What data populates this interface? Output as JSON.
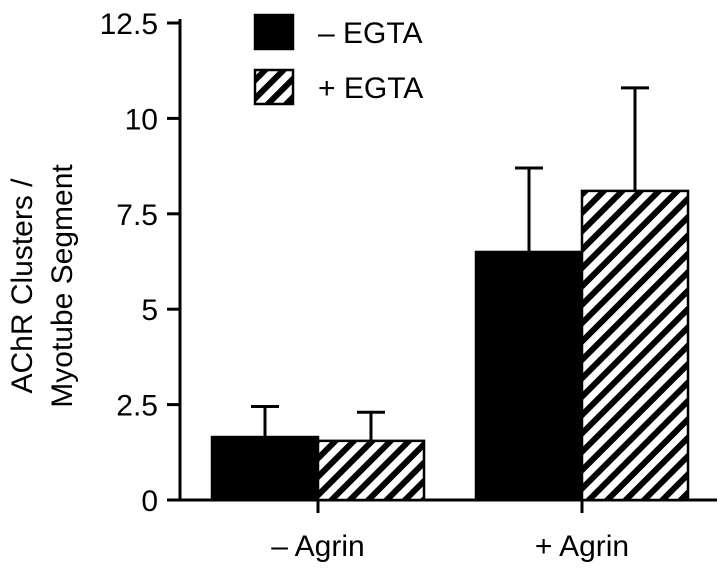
{
  "chart_data": {
    "type": "bar",
    "title": "",
    "xlabel": "",
    "ylabel_lines": [
      "AChR Clusters /",
      "Myotube Segment"
    ],
    "categories": [
      "– Agrin",
      "+ Agrin"
    ],
    "series": [
      {
        "name": "– EGTA",
        "values": [
          1.65,
          6.5
        ],
        "errors": [
          0.8,
          2.2
        ],
        "fill": "solid",
        "color": "#000000"
      },
      {
        "name": "+ EGTA",
        "values": [
          1.55,
          8.1
        ],
        "errors": [
          0.75,
          2.7
        ],
        "fill": "hatched",
        "color": "#000000"
      }
    ],
    "ylim": [
      0,
      12.5
    ],
    "yticks": [
      0,
      2.5,
      5,
      7.5,
      10,
      12.5
    ],
    "ytick_labels": [
      "0",
      "2.5",
      "5",
      "7.5",
      "10",
      "12.5"
    ],
    "error_bars": "upper",
    "grid": false,
    "legend_position": "top-left"
  }
}
